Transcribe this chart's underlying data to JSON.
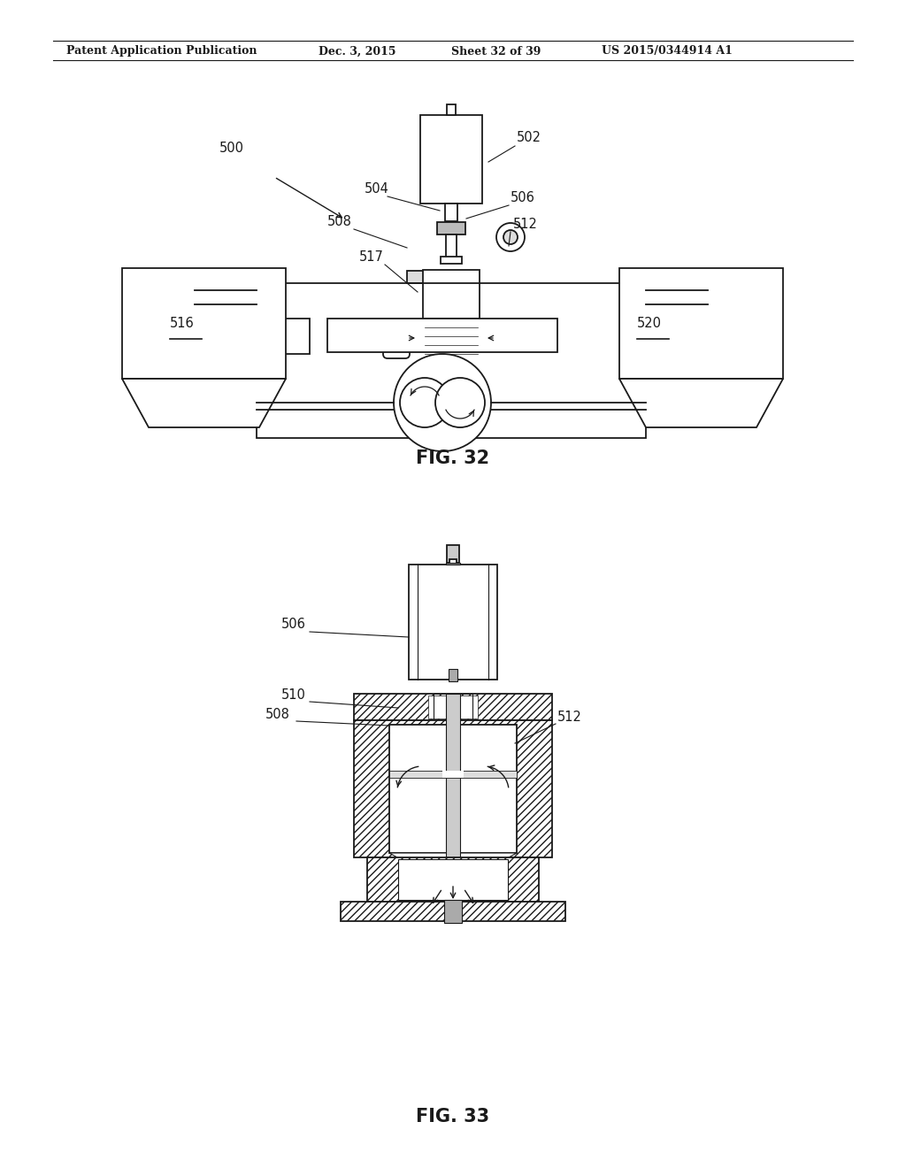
{
  "background_color": "#ffffff",
  "header_text": "Patent Application Publication",
  "header_date": "Dec. 3, 2015",
  "header_sheet": "Sheet 32 of 39",
  "header_patent": "US 2015/0344914 A1",
  "fig32_caption": "FIG. 32",
  "fig33_caption": "FIG. 33",
  "line_color": "#1a1a1a",
  "label_fontsize": 10.5,
  "caption_fontsize": 15,
  "header_fontsize": 9
}
